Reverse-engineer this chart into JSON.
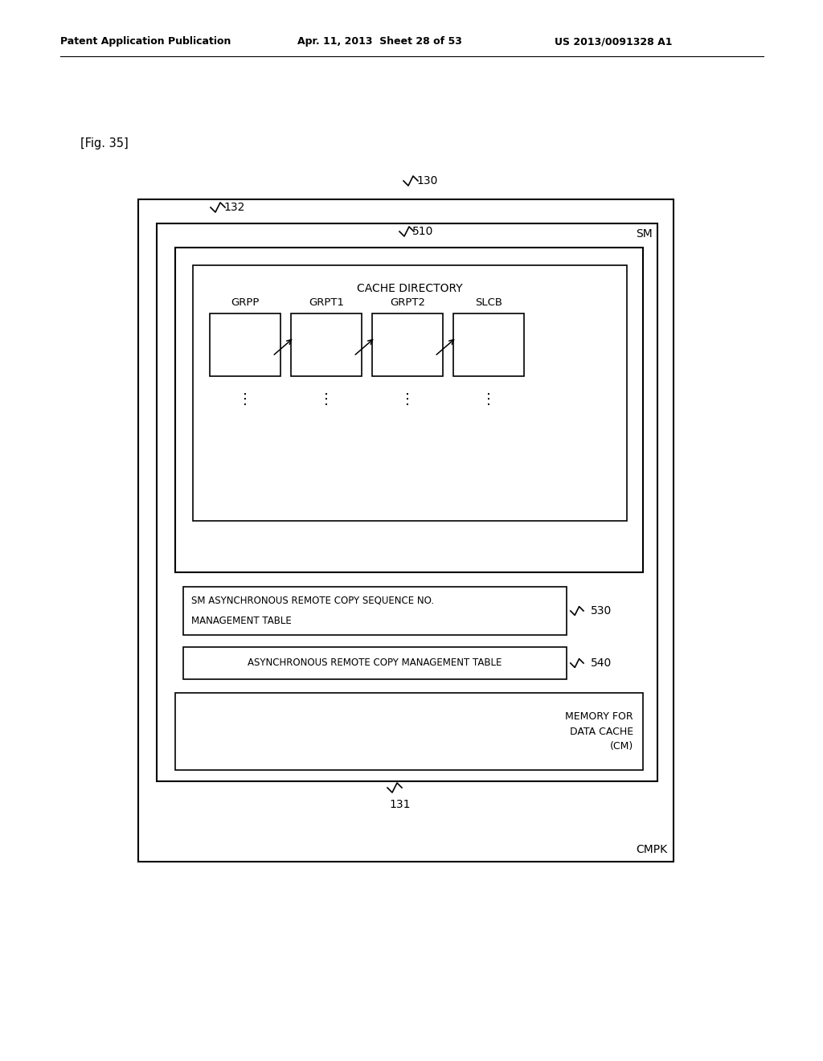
{
  "bg_color": "#ffffff",
  "header_left": "Patent Application Publication",
  "header_mid": "Apr. 11, 2013  Sheet 28 of 53",
  "header_right": "US 2013/0091328 A1",
  "fig_label": "[Fig. 35]",
  "label_130": "130",
  "label_132": "132",
  "label_SM": "SM",
  "label_510": "510",
  "label_CMPK": "CMPK",
  "label_131": "131",
  "label_cache_directory": "CACHE DIRECTORY",
  "box_labels": [
    "GRPP",
    "GRPT1",
    "GRPT2",
    "SLCB"
  ],
  "label_530": "530",
  "label_540": "540",
  "table1_line1": "SM ASYNCHRONOUS REMOTE COPY SEQUENCE NO.",
  "table1_line2": "MANAGEMENT TABLE",
  "table2_text": "ASYNCHRONOUS REMOTE COPY MANAGEMENT TABLE",
  "cm_label_line1": "MEMORY FOR",
  "cm_label_line2": "DATA CACHE",
  "cm_label_line3": "(CM)"
}
